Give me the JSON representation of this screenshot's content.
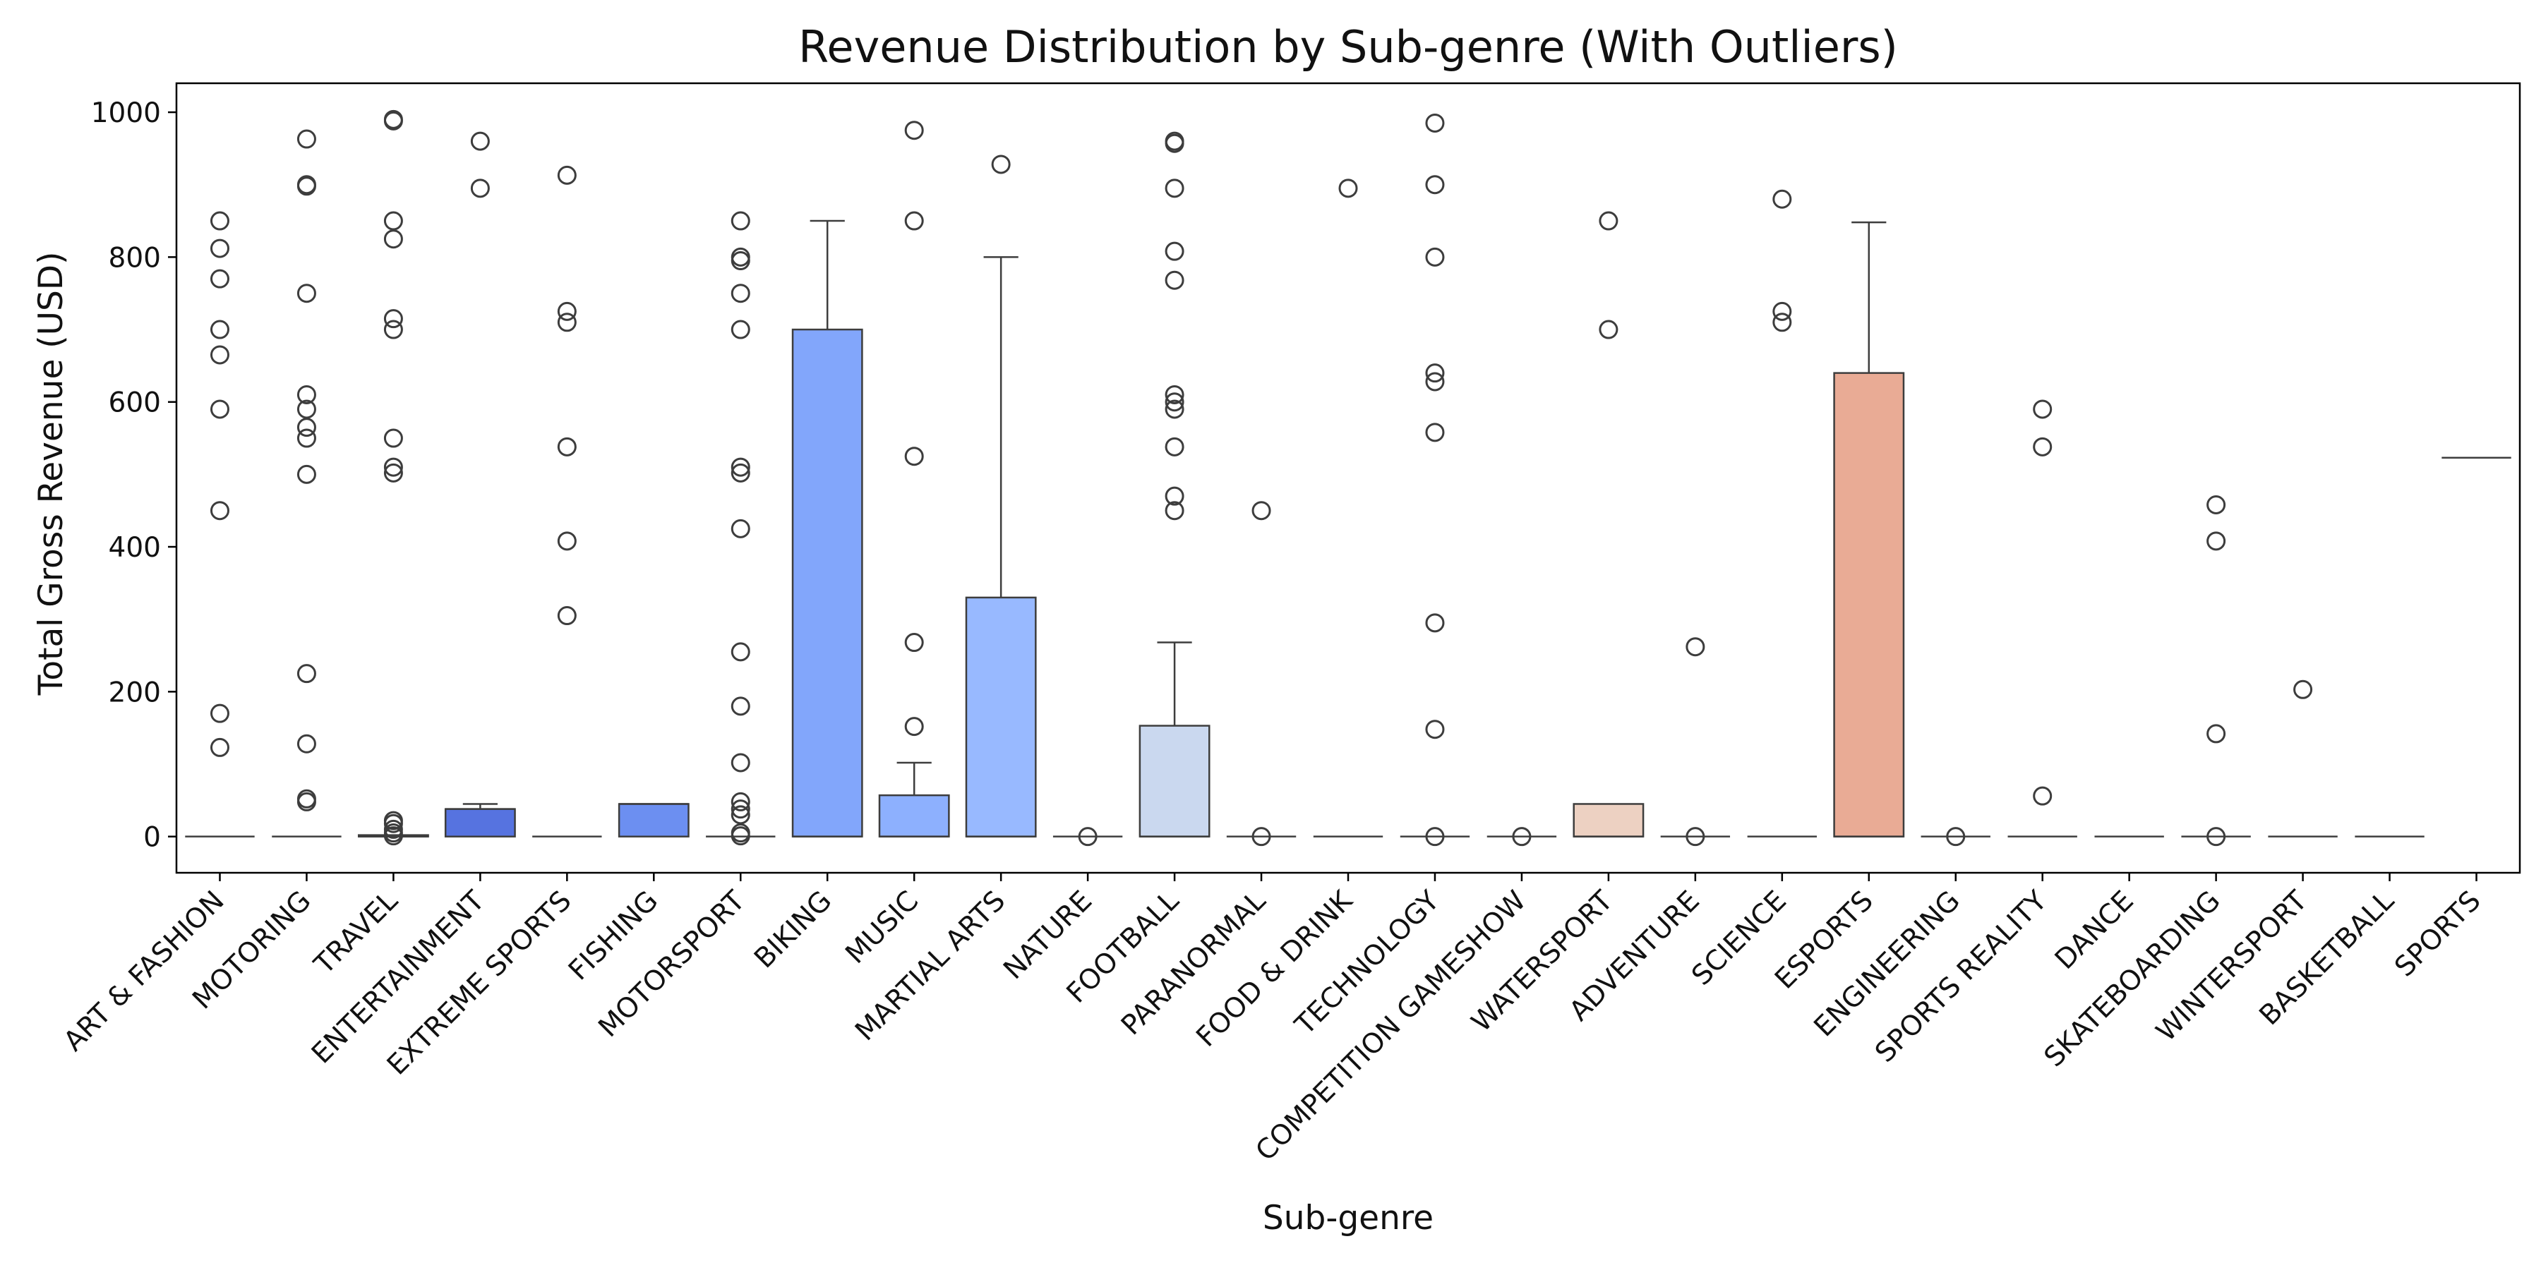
{
  "chart_data": {
    "type": "box",
    "title": "Revenue Distribution by Sub-genre (With Outliers)",
    "xlabel": "Sub-genre",
    "ylabel": "Total Gross Revenue (USD)",
    "ylim": [
      -50,
      1040
    ],
    "yticks": [
      0,
      200,
      400,
      600,
      800,
      1000
    ],
    "grid": false,
    "categories": [
      "ART & FASHION",
      "MOTORING",
      "TRAVEL",
      "ENTERTAINMENT",
      "EXTREME SPORTS",
      "FISHING",
      "MOTORSPORT",
      "BIKING",
      "MUSIC",
      "MARTIAL ARTS",
      "NATURE",
      "FOOTBALL",
      "PARANORMAL",
      "FOOD & DRINK",
      "TECHNOLOGY",
      "COMPETITION GAMESHOW",
      "WATERSPORT",
      "ADVENTURE",
      "SCIENCE",
      "ESPORTS",
      "ENGINEERING",
      "SPORTS REALITY",
      "DANCE",
      "SKATEBOARDING",
      "WINTERSPORT",
      "BASKETBALL",
      "SPORTS"
    ],
    "boxes": [
      {
        "category": "ART & FASHION",
        "whislo": 0,
        "q1": 0,
        "med": 0,
        "q3": 0,
        "whishi": 0,
        "outliers": [
          850,
          812,
          770,
          700,
          665,
          590,
          450,
          170,
          123
        ],
        "color": "#3b4cc0"
      },
      {
        "category": "MOTORING",
        "whislo": 0,
        "q1": 0,
        "med": 0,
        "q3": 0,
        "whishi": 0,
        "outliers": [
          963,
          900,
          898,
          750,
          610,
          590,
          565,
          550,
          500,
          225,
          128,
          52,
          48
        ],
        "color": "#4358cb"
      },
      {
        "category": "TRAVEL",
        "whislo": 0,
        "q1": 0,
        "med": 0,
        "q3": 2,
        "whishi": 2,
        "outliers": [
          990,
          988,
          850,
          825,
          715,
          700,
          550,
          510,
          502,
          22,
          18,
          10,
          5,
          1
        ],
        "color": "#4c66d6"
      },
      {
        "category": "ENTERTAINMENT",
        "whislo": 0,
        "q1": 0,
        "med": 38,
        "q3": 38,
        "whishi": 45,
        "outliers": [
          960,
          895
        ],
        "color": "#5673e0"
      },
      {
        "category": "EXTREME SPORTS",
        "whislo": 0,
        "q1": 0,
        "med": 0,
        "q3": 0,
        "whishi": 0,
        "outliers": [
          913,
          725,
          710,
          538,
          408,
          305
        ],
        "color": "#6282ea"
      },
      {
        "category": "FISHING",
        "whislo": 0,
        "q1": 0,
        "med": 45,
        "q3": 45,
        "whishi": 45,
        "outliers": [],
        "color": "#6c8ff1"
      },
      {
        "category": "MOTORSPORT",
        "whislo": 0,
        "q1": 0,
        "med": 0,
        "q3": 0,
        "whishi": 0,
        "outliers": [
          850,
          800,
          795,
          750,
          700,
          510,
          502,
          425,
          255,
          180,
          102,
          48,
          38,
          30,
          5,
          1
        ],
        "color": "#779af7"
      },
      {
        "category": "BIKING",
        "whislo": 0,
        "q1": 0,
        "med": 0,
        "q3": 700,
        "whishi": 850,
        "outliers": [],
        "color": "#82a6fb"
      },
      {
        "category": "MUSIC",
        "whislo": 0,
        "q1": 0,
        "med": 0,
        "q3": 57,
        "whishi": 102,
        "outliers": [
          975,
          850,
          525,
          268,
          152
        ],
        "color": "#8db0fe"
      },
      {
        "category": "MARTIAL ARTS",
        "whislo": 0,
        "q1": 0,
        "med": 0,
        "q3": 330,
        "whishi": 800,
        "outliers": [
          928
        ],
        "color": "#98b9ff"
      },
      {
        "category": "NATURE",
        "whislo": 0,
        "q1": 0,
        "med": 0,
        "q3": 0,
        "whishi": 0,
        "outliers": [
          0
        ],
        "color": "#a3c2fe"
      },
      {
        "category": "FOOTBALL",
        "whislo": 0,
        "q1": 0,
        "med": 0,
        "q3": 153,
        "whishi": 268,
        "outliers": [
          960,
          957,
          895,
          808,
          768,
          610,
          600,
          590,
          538,
          470,
          450
        ],
        "color": "#cad8ef"
      },
      {
        "category": "PARANORMAL",
        "whislo": 0,
        "q1": 0,
        "med": 0,
        "q3": 0,
        "whishi": 0,
        "outliers": [
          450,
          0
        ],
        "color": "#b5cdfa"
      },
      {
        "category": "FOOD & DRINK",
        "whislo": 0,
        "q1": 0,
        "med": 0,
        "q3": 0,
        "whishi": 0,
        "outliers": [
          895
        ],
        "color": "#bfd3f6"
      },
      {
        "category": "TECHNOLOGY",
        "whislo": 0,
        "q1": 0,
        "med": 0,
        "q3": 0,
        "whishi": 0,
        "outliers": [
          985,
          900,
          800,
          640,
          628,
          558,
          295,
          148,
          0
        ],
        "color": "#c9d7f0"
      },
      {
        "category": "COMPETITION GAMESHOW",
        "whislo": 0,
        "q1": 0,
        "med": 0,
        "q3": 0,
        "whishi": 0,
        "outliers": [
          0
        ],
        "color": "#d1dae9"
      },
      {
        "category": "WATERSPORT",
        "whislo": 0,
        "q1": 0,
        "med": 0,
        "q3": 45,
        "whishi": 45,
        "outliers": [
          850,
          700
        ],
        "color": "#edd1c2"
      },
      {
        "category": "ADVENTURE",
        "whislo": 0,
        "q1": 0,
        "med": 0,
        "q3": 0,
        "whishi": 0,
        "outliers": [
          262,
          0
        ],
        "color": "#f2cbb7"
      },
      {
        "category": "SCIENCE",
        "whislo": 0,
        "q1": 0,
        "med": 0,
        "q3": 0,
        "whishi": 0,
        "outliers": [
          880,
          725,
          710
        ],
        "color": "#f4c5ad"
      },
      {
        "category": "ESPORTS",
        "whislo": 0,
        "q1": 0,
        "med": 0,
        "q3": 640,
        "whishi": 848,
        "outliers": [],
        "color": "#e9ab95"
      },
      {
        "category": "ENGINEERING",
        "whislo": 0,
        "q1": 0,
        "med": 0,
        "q3": 0,
        "whishi": 0,
        "outliers": [
          0
        ],
        "color": "#f7b89c"
      },
      {
        "category": "SPORTS REALITY",
        "whislo": 0,
        "q1": 0,
        "med": 0,
        "q3": 0,
        "whishi": 0,
        "outliers": [
          590,
          538,
          56
        ],
        "color": "#f7b194"
      },
      {
        "category": "DANCE",
        "whislo": 0,
        "q1": 0,
        "med": 0,
        "q3": 0,
        "whishi": 0,
        "outliers": [],
        "color": "#f7aa8c"
      },
      {
        "category": "SKATEBOARDING",
        "whislo": 0,
        "q1": 0,
        "med": 0,
        "q3": 0,
        "whishi": 0,
        "outliers": [
          458,
          408,
          142,
          0
        ],
        "color": "#f6a283"
      },
      {
        "category": "WINTERSPORT",
        "whislo": 0,
        "q1": 0,
        "med": 0,
        "q3": 0,
        "whishi": 0,
        "outliers": [
          203
        ],
        "color": "#f4987a"
      },
      {
        "category": "BASKETBALL",
        "whislo": 0,
        "q1": 0,
        "med": 0,
        "q3": 0,
        "whishi": 0,
        "outliers": [],
        "color": "#f29072"
      },
      {
        "category": "SPORTS",
        "whislo": 523,
        "q1": 523,
        "med": 523,
        "q3": 523,
        "whishi": 523,
        "outliers": [],
        "color": "#ee8468"
      }
    ],
    "colors": {
      "box_edge": "#3d3d3d",
      "axis": "#000000"
    }
  }
}
